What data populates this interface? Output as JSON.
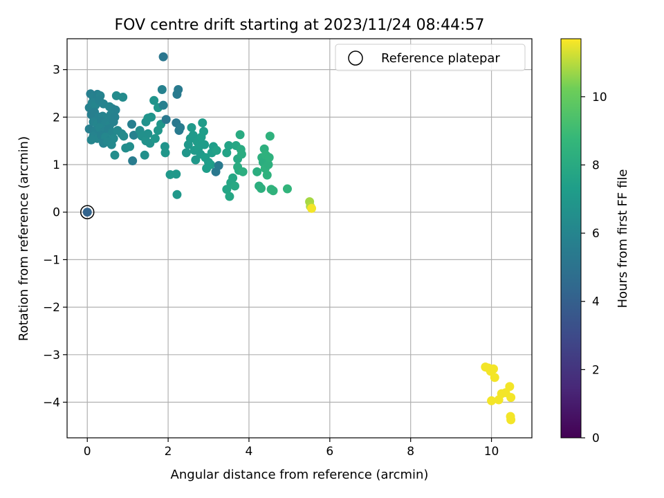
{
  "chart_data": {
    "type": "scatter",
    "title": "FOV centre drift starting at 2023/11/24 08:44:57",
    "xlabel": "Angular distance from reference (arcmin)",
    "ylabel": "Rotation from reference (arcmin)",
    "xlim": [
      -0.5,
      11
    ],
    "ylim": [
      -4.75,
      3.65
    ],
    "xticks": [
      0,
      2,
      4,
      6,
      8,
      10
    ],
    "yticks": [
      -4,
      -3,
      -2,
      -1,
      0,
      1,
      2,
      3
    ],
    "grid": true,
    "legend": {
      "position": "top-right",
      "entries": [
        "Reference platepar"
      ]
    },
    "colorbar": {
      "label": "Hours from first FF file",
      "min": 0,
      "max": 11.7,
      "ticks": [
        0,
        2,
        4,
        6,
        8,
        10
      ],
      "colormap": "viridis"
    },
    "reference": {
      "x": 0,
      "y": 0,
      "hours": 4.2
    },
    "series": [
      {
        "points": [
          [
            0.0,
            0.0,
            4.2
          ],
          [
            0.08,
            2.49,
            5.7
          ],
          [
            0.15,
            2.42,
            5.8
          ],
          [
            0.25,
            2.48,
            5.7
          ],
          [
            0.32,
            2.45,
            5.9
          ],
          [
            0.05,
            2.2,
            5.8
          ],
          [
            0.12,
            2.3,
            5.9
          ],
          [
            0.2,
            2.25,
            6.0
          ],
          [
            0.3,
            2.35,
            5.8
          ],
          [
            0.4,
            2.28,
            5.9
          ],
          [
            0.55,
            2.22,
            6.0
          ],
          [
            0.62,
            2.18,
            5.9
          ],
          [
            0.7,
            2.15,
            5.8
          ],
          [
            0.72,
            2.45,
            6.3
          ],
          [
            0.88,
            2.42,
            6.3
          ],
          [
            0.1,
            2.05,
            5.6
          ],
          [
            0.18,
            2.1,
            5.7
          ],
          [
            0.28,
            2.0,
            5.8
          ],
          [
            0.38,
            2.02,
            5.9
          ],
          [
            0.48,
            1.98,
            6.0
          ],
          [
            0.58,
            2.05,
            5.9
          ],
          [
            0.68,
            2.0,
            5.8
          ],
          [
            0.15,
            1.9,
            5.9
          ],
          [
            0.25,
            1.85,
            6.0
          ],
          [
            0.35,
            1.92,
            5.8
          ],
          [
            0.45,
            1.88,
            5.9
          ],
          [
            0.55,
            1.82,
            6.0
          ],
          [
            0.65,
            1.9,
            5.8
          ],
          [
            0.05,
            1.75,
            5.7
          ],
          [
            0.2,
            1.72,
            5.8
          ],
          [
            0.3,
            1.78,
            6.0
          ],
          [
            0.42,
            1.7,
            5.9
          ],
          [
            0.52,
            1.75,
            5.8
          ],
          [
            0.62,
            1.68,
            6.0
          ],
          [
            0.75,
            1.72,
            6.2
          ],
          [
            0.85,
            1.65,
            6.2
          ],
          [
            0.15,
            1.6,
            5.9
          ],
          [
            0.25,
            1.55,
            6.0
          ],
          [
            0.35,
            1.62,
            5.8
          ],
          [
            0.45,
            1.58,
            6.1
          ],
          [
            0.55,
            1.5,
            6.0
          ],
          [
            0.65,
            1.55,
            6.2
          ],
          [
            0.1,
            1.52,
            6.0
          ],
          [
            0.4,
            1.45,
            5.9
          ],
          [
            0.5,
            1.48,
            6.1
          ],
          [
            0.6,
            1.42,
            6.2
          ],
          [
            0.9,
            1.6,
            6.3
          ],
          [
            0.95,
            1.35,
            6.4
          ],
          [
            1.05,
            1.38,
            6.5
          ],
          [
            0.68,
            1.2,
            6.4
          ],
          [
            1.12,
            1.08,
            5.5
          ],
          [
            1.1,
            1.85,
            5.7
          ],
          [
            1.15,
            1.62,
            5.8
          ],
          [
            1.3,
            1.72,
            6.5
          ],
          [
            1.35,
            1.6,
            6.6
          ],
          [
            1.45,
            1.5,
            6.7
          ],
          [
            1.5,
            1.65,
            6.6
          ],
          [
            1.42,
            1.2,
            6.6
          ],
          [
            1.55,
            1.45,
            6.7
          ],
          [
            1.45,
            1.9,
            6.7
          ],
          [
            1.5,
            1.98,
            6.8
          ],
          [
            1.58,
            2.0,
            6.8
          ],
          [
            1.65,
            2.35,
            6.8
          ],
          [
            1.68,
            1.55,
            6.9
          ],
          [
            1.75,
            1.72,
            6.9
          ],
          [
            1.75,
            2.2,
            6.9
          ],
          [
            1.82,
            1.85,
            6.9
          ],
          [
            1.88,
            2.25,
            5.7
          ],
          [
            1.85,
            2.58,
            5.8
          ],
          [
            1.88,
            3.27,
            5.2
          ],
          [
            1.95,
            1.95,
            5.3
          ],
          [
            1.92,
            1.38,
            6.8
          ],
          [
            1.93,
            1.25,
            6.9
          ],
          [
            2.05,
            0.79,
            7.0
          ],
          [
            2.2,
            0.8,
            7.0
          ],
          [
            2.22,
            0.37,
            7.0
          ],
          [
            2.22,
            2.48,
            5.4
          ],
          [
            2.25,
            2.58,
            5.4
          ],
          [
            2.2,
            1.88,
            5.3
          ],
          [
            2.27,
            1.72,
            5.4
          ],
          [
            2.3,
            1.78,
            5.5
          ],
          [
            2.45,
            1.25,
            6.9
          ],
          [
            2.5,
            1.42,
            7.0
          ],
          [
            2.55,
            1.55,
            7.1
          ],
          [
            2.58,
            1.78,
            7.1
          ],
          [
            2.62,
            1.62,
            7.1
          ],
          [
            2.65,
            1.3,
            7.1
          ],
          [
            2.68,
            1.1,
            7.0
          ],
          [
            2.72,
            1.48,
            7.2
          ],
          [
            2.75,
            1.35,
            7.2
          ],
          [
            2.8,
            1.22,
            7.1
          ],
          [
            2.82,
            1.58,
            7.3
          ],
          [
            2.85,
            1.88,
            7.2
          ],
          [
            2.88,
            1.7,
            7.3
          ],
          [
            2.9,
            1.42,
            7.2
          ],
          [
            2.92,
            1.15,
            7.3
          ],
          [
            2.95,
            0.92,
            7.3
          ],
          [
            3.0,
            1.05,
            7.2
          ],
          [
            3.05,
            1.0,
            7.3
          ],
          [
            3.08,
            1.25,
            7.3
          ],
          [
            3.12,
            1.38,
            7.3
          ],
          [
            3.18,
            0.85,
            5.3
          ],
          [
            3.25,
            0.98,
            5.4
          ],
          [
            3.2,
            1.3,
            7.5
          ],
          [
            3.45,
            1.25,
            7.6
          ],
          [
            3.5,
            1.4,
            7.6
          ],
          [
            3.45,
            0.48,
            7.7
          ],
          [
            3.55,
            0.62,
            7.8
          ],
          [
            3.52,
            0.33,
            7.8
          ],
          [
            3.6,
            0.72,
            7.8
          ],
          [
            3.65,
            0.55,
            7.9
          ],
          [
            3.68,
            1.4,
            7.8
          ],
          [
            3.72,
            1.12,
            7.9
          ],
          [
            3.75,
            0.88,
            8.0
          ],
          [
            3.78,
            1.63,
            8.0
          ],
          [
            3.8,
            1.32,
            8.0
          ],
          [
            3.82,
            1.22,
            8.1
          ],
          [
            3.72,
            0.95,
            8.1
          ],
          [
            3.85,
            0.85,
            8.2
          ],
          [
            4.2,
            0.85,
            8.2
          ],
          [
            4.25,
            0.55,
            8.2
          ],
          [
            4.3,
            0.5,
            8.3
          ],
          [
            4.32,
            1.15,
            8.3
          ],
          [
            4.35,
            1.05,
            8.2
          ],
          [
            4.38,
            1.33,
            8.3
          ],
          [
            4.4,
            0.92,
            8.4
          ],
          [
            4.42,
            1.2,
            8.4
          ],
          [
            4.45,
            0.78,
            8.4
          ],
          [
            4.48,
            1.0,
            8.3
          ],
          [
            4.5,
            1.15,
            8.4
          ],
          [
            4.52,
            1.6,
            8.4
          ],
          [
            4.55,
            0.48,
            8.5
          ],
          [
            4.6,
            0.45,
            8.5
          ],
          [
            4.95,
            0.49,
            8.6
          ],
          [
            5.5,
            0.22,
            10.8
          ],
          [
            5.52,
            0.12,
            10.9
          ],
          [
            5.55,
            0.08,
            11.6
          ],
          [
            9.85,
            -3.26,
            11.6
          ],
          [
            9.92,
            -3.28,
            11.6
          ],
          [
            9.98,
            -3.35,
            11.6
          ],
          [
            10.05,
            -3.3,
            11.6
          ],
          [
            10.08,
            -3.48,
            11.6
          ],
          [
            10.0,
            -3.97,
            11.6
          ],
          [
            10.18,
            -3.95,
            11.6
          ],
          [
            10.25,
            -3.82,
            11.6
          ],
          [
            10.35,
            -3.8,
            11.6
          ],
          [
            10.45,
            -3.67,
            11.6
          ],
          [
            10.48,
            -3.9,
            11.6
          ],
          [
            10.47,
            -4.3,
            11.6
          ],
          [
            10.48,
            -4.37,
            11.6
          ]
        ]
      }
    ]
  }
}
